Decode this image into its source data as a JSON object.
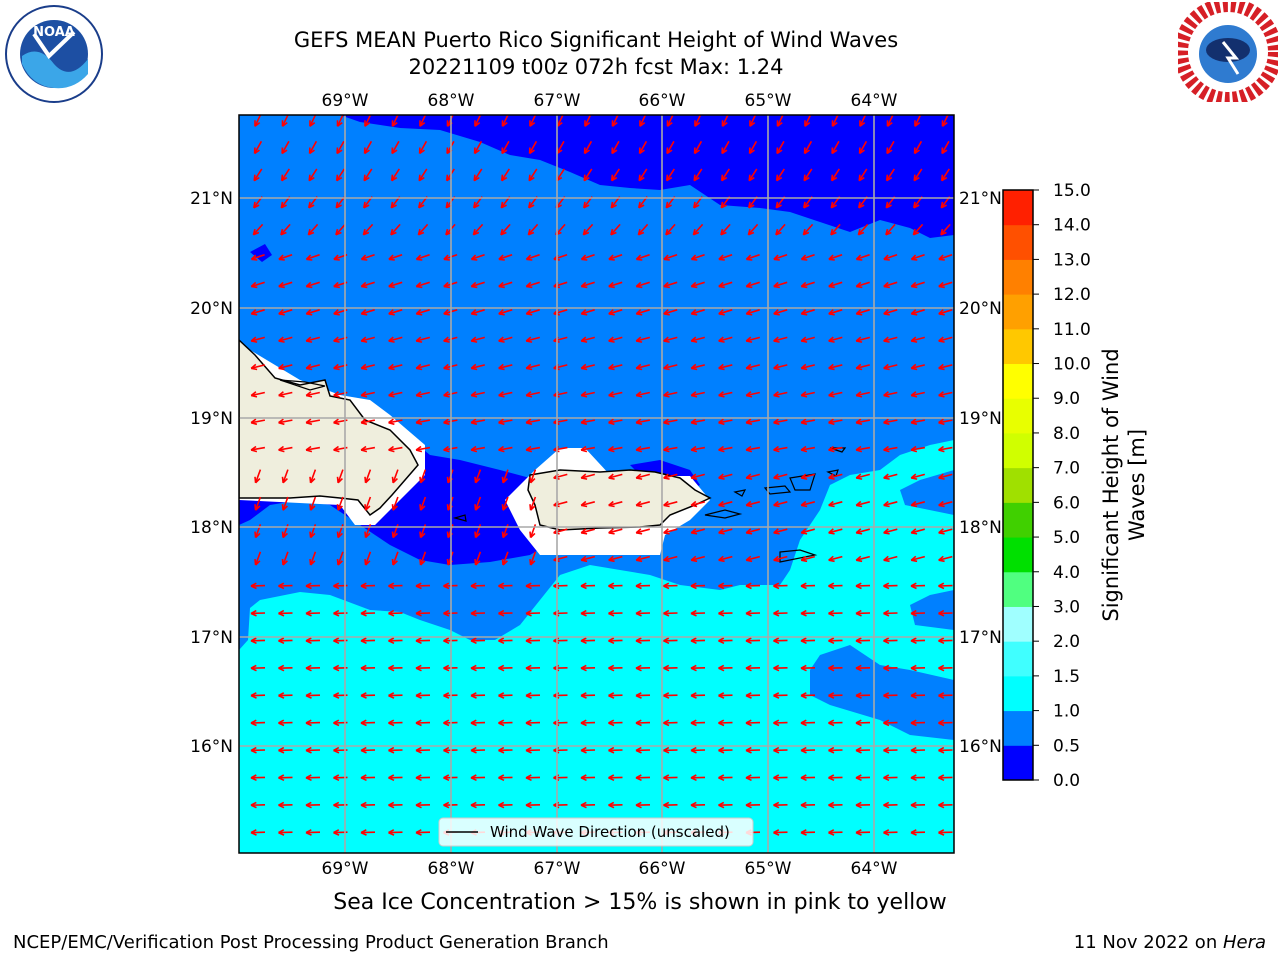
{
  "title": {
    "line1": "GEFS MEAN Puerto Rico Significant Height of Wind Waves",
    "line2": "20221109 t00z 072h fcst   Max: 1.24"
  },
  "map": {
    "lon_labels": [
      "69°W",
      "68°W",
      "67°W",
      "66°W",
      "65°W",
      "64°W"
    ],
    "lat_labels": [
      "21°N",
      "20°N",
      "19°N",
      "18°N",
      "17°N",
      "16°N"
    ],
    "legend_label": "Wind Wave Direction (unscaled)",
    "arrow_color": "#ff0000",
    "land_color": "#efeedd"
  },
  "colorbar": {
    "label": "Significant Height of Wind Waves [m]",
    "ticks": [
      "0.0",
      "0.5",
      "1.0",
      "1.5",
      "2.0",
      "3.0",
      "4.0",
      "5.0",
      "6.0",
      "7.0",
      "8.0",
      "9.0",
      "10.0",
      "11.0",
      "12.0",
      "13.0",
      "14.0",
      "15.0"
    ],
    "colors": [
      "#0000ff",
      "#0080ff",
      "#00ffff",
      "#40ffff",
      "#a0ffff",
      "#50ff80",
      "#00e000",
      "#40d000",
      "#a0e000",
      "#d0ff00",
      "#e8ff00",
      "#ffff00",
      "#ffc800",
      "#ffa000",
      "#ff8000",
      "#ff5000",
      "#ff2000"
    ]
  },
  "note": "Sea Ice Concentration > 15% is shown in pink to yellow",
  "footer": {
    "left": "NCEP/EMC/Verification Post Processing Product Generation Branch",
    "right_date": "11 Nov 2022 on ",
    "right_host": "Hera"
  }
}
